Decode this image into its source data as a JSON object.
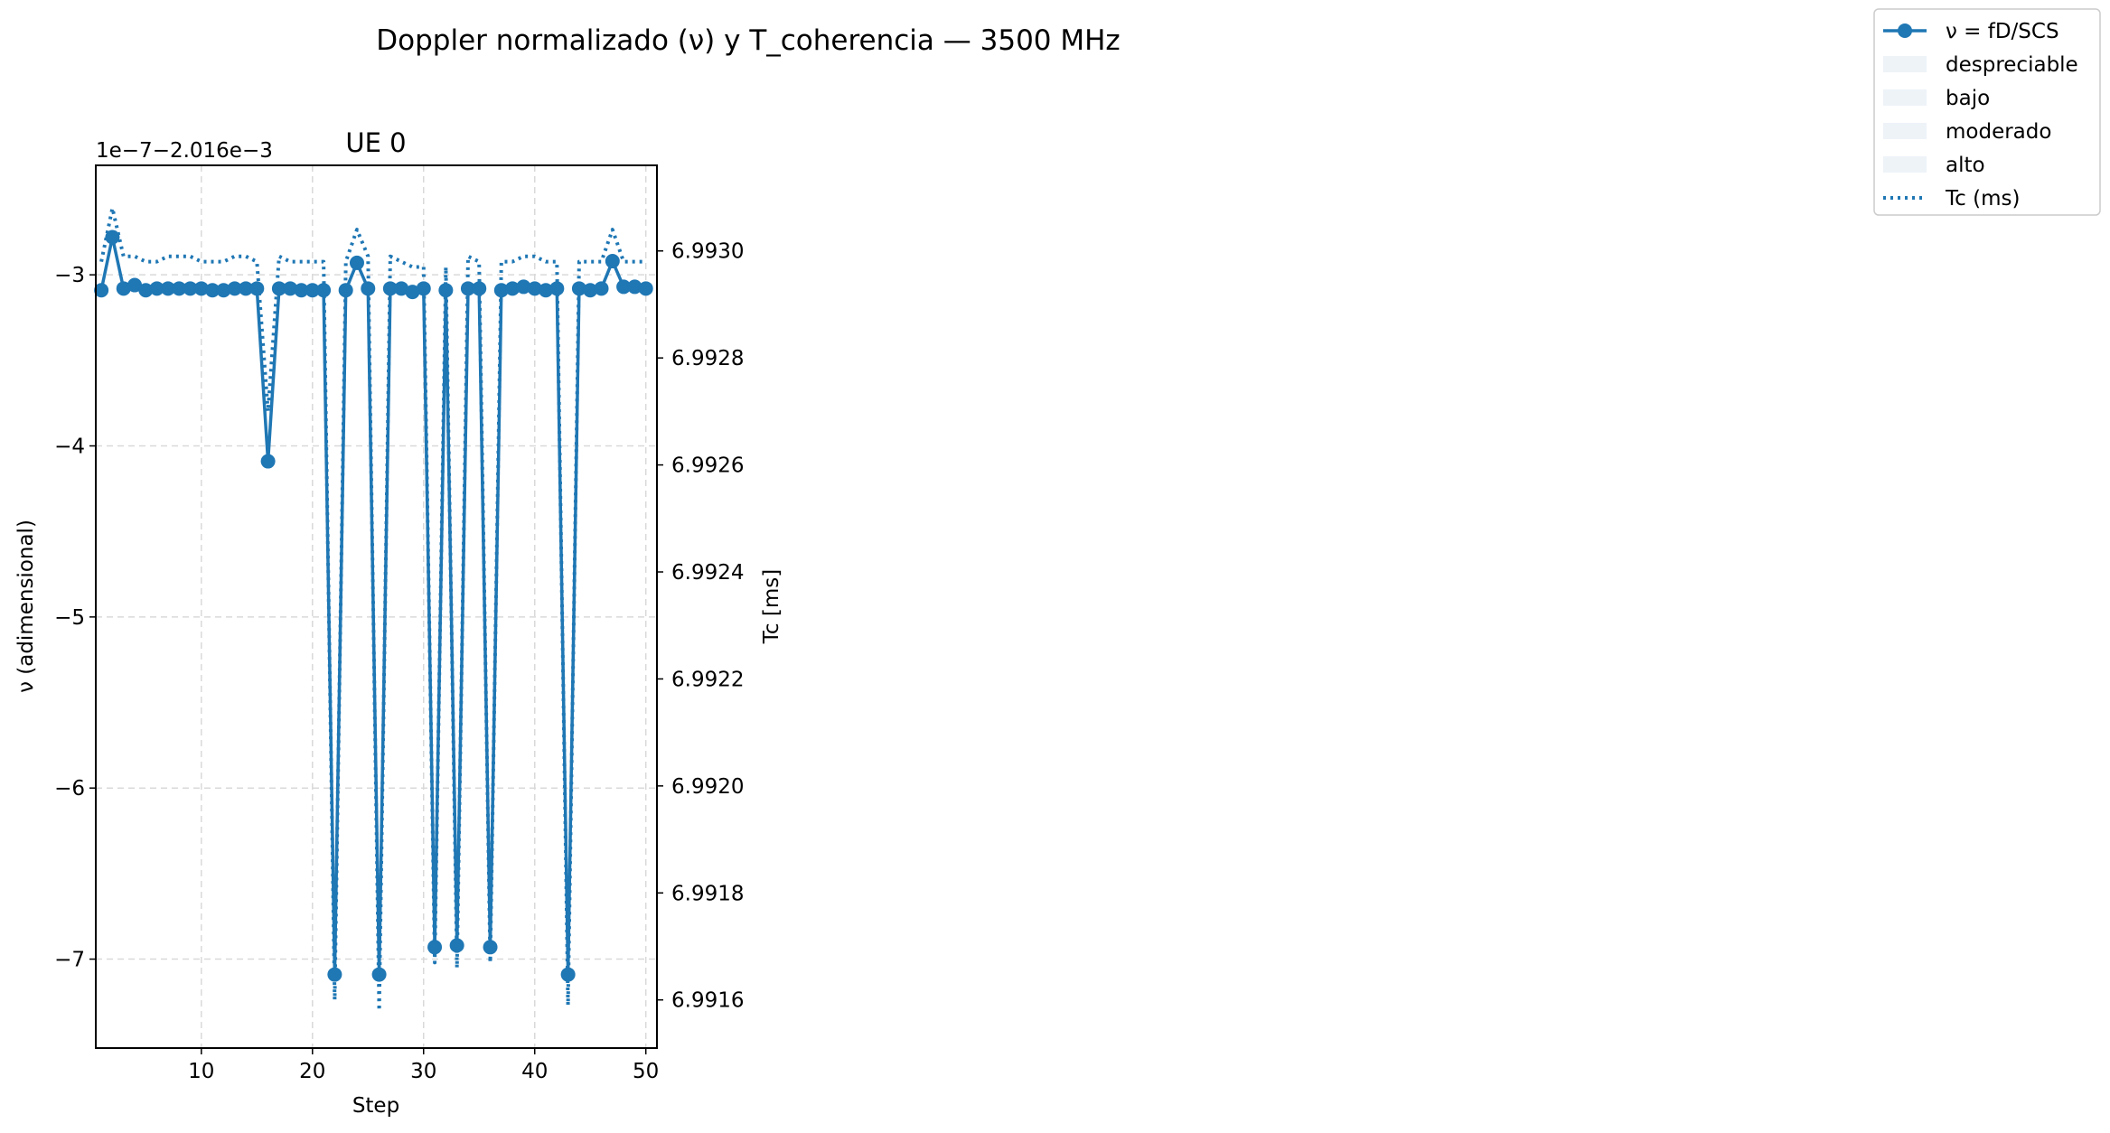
{
  "chart_data": {
    "type": "line",
    "suptitle": "Doppler normalizado (ν) y T_coherencia — 3500 MHz",
    "title": "UE 0",
    "xlabel": "Step",
    "ylabel_left": "ν (adimensional)",
    "ylabel_right": "Tc [ms]",
    "offset_text": "1e−7−2.016e−3",
    "x_ticks": [
      10,
      20,
      30,
      40,
      50
    ],
    "xlim": [
      0.5,
      51
    ],
    "y_left_ticks": [
      {
        "value": -3,
        "label": "−3"
      },
      {
        "value": -4,
        "label": "−4"
      },
      {
        "value": -5,
        "label": "−5"
      },
      {
        "value": -6,
        "label": "−6"
      },
      {
        "value": -7,
        "label": "−7"
      }
    ],
    "ylim_left": [
      -7.52,
      -2.36
    ],
    "y_right_ticks": [
      {
        "value": 6.993,
        "label": "6.9930"
      },
      {
        "value": 6.9928,
        "label": "6.9928"
      },
      {
        "value": 6.9926,
        "label": "6.9926"
      },
      {
        "value": 6.9924,
        "label": "6.9924"
      },
      {
        "value": 6.9922,
        "label": "6.9922"
      },
      {
        "value": 6.992,
        "label": "6.9920"
      },
      {
        "value": 6.9918,
        "label": "6.9918"
      },
      {
        "value": 6.9916,
        "label": "6.9916"
      }
    ],
    "ylim_right": [
      6.99151,
      6.99316
    ],
    "grid": true,
    "legend_position": "upper-right (outside)",
    "legend": [
      {
        "label": "ν = fD/SCS",
        "kind": "line-marker"
      },
      {
        "label": "despreciable",
        "kind": "patch"
      },
      {
        "label": "bajo",
        "kind": "patch"
      },
      {
        "label": "moderado",
        "kind": "patch"
      },
      {
        "label": "alto",
        "kind": "patch"
      },
      {
        "label": "Tc (ms)",
        "kind": "dotted"
      }
    ],
    "colors": {
      "series": "#1f77b4",
      "patch": "#eef3f8",
      "grid": "#d9d9d9"
    },
    "series": [
      {
        "name": "ν = fD/SCS",
        "axis": "left",
        "style": "line-marker",
        "x": [
          1,
          2,
          3,
          4,
          5,
          6,
          7,
          8,
          9,
          10,
          11,
          12,
          13,
          14,
          15,
          16,
          17,
          18,
          19,
          20,
          21,
          22,
          23,
          24,
          25,
          26,
          27,
          28,
          29,
          30,
          31,
          32,
          33,
          34,
          35,
          36,
          37,
          38,
          39,
          40,
          41,
          42,
          43,
          44,
          45,
          46,
          47,
          48,
          49,
          50
        ],
        "y": [
          -3.09,
          -2.78,
          -3.08,
          -3.06,
          -3.09,
          -3.08,
          -3.08,
          -3.08,
          -3.08,
          -3.08,
          -3.09,
          -3.09,
          -3.08,
          -3.08,
          -3.08,
          -4.09,
          -3.08,
          -3.08,
          -3.09,
          -3.09,
          -3.09,
          -7.09,
          -3.09,
          -2.93,
          -3.08,
          -7.09,
          -3.08,
          -3.08,
          -3.1,
          -3.08,
          -6.93,
          -3.09,
          -6.92,
          -3.08,
          -3.08,
          -6.93,
          -3.09,
          -3.08,
          -3.07,
          -3.08,
          -3.09,
          -3.08,
          -7.09,
          -3.08,
          -3.09,
          -3.08,
          -2.92,
          -3.07,
          -3.07,
          -3.08
        ]
      },
      {
        "name": "Tc (ms)",
        "axis": "right",
        "style": "dotted",
        "x": [
          1,
          2,
          3,
          4,
          5,
          6,
          7,
          8,
          9,
          10,
          11,
          12,
          13,
          14,
          15,
          16,
          17,
          18,
          19,
          20,
          21,
          22,
          23,
          24,
          25,
          26,
          27,
          28,
          29,
          30,
          31,
          32,
          33,
          34,
          35,
          36,
          37,
          38,
          39,
          40,
          41,
          42,
          43,
          44,
          45,
          46,
          47,
          48,
          49,
          50
        ],
        "y": [
          6.99298,
          6.99308,
          6.99299,
          6.99299,
          6.99298,
          6.99298,
          6.99299,
          6.99299,
          6.99299,
          6.99298,
          6.99298,
          6.99298,
          6.99299,
          6.99299,
          6.99298,
          6.9927,
          6.99299,
          6.99298,
          6.99298,
          6.99298,
          6.99298,
          6.9916,
          6.99298,
          6.99304,
          6.99299,
          6.99158,
          6.99299,
          6.99298,
          6.99297,
          6.99297,
          6.99167,
          6.99297,
          6.99166,
          6.99299,
          6.99298,
          6.99167,
          6.99298,
          6.99298,
          6.99299,
          6.99299,
          6.99298,
          6.99298,
          6.99159,
          6.99298,
          6.99298,
          6.99298,
          6.99304,
          6.99298,
          6.99298,
          6.99298
        ]
      }
    ]
  }
}
